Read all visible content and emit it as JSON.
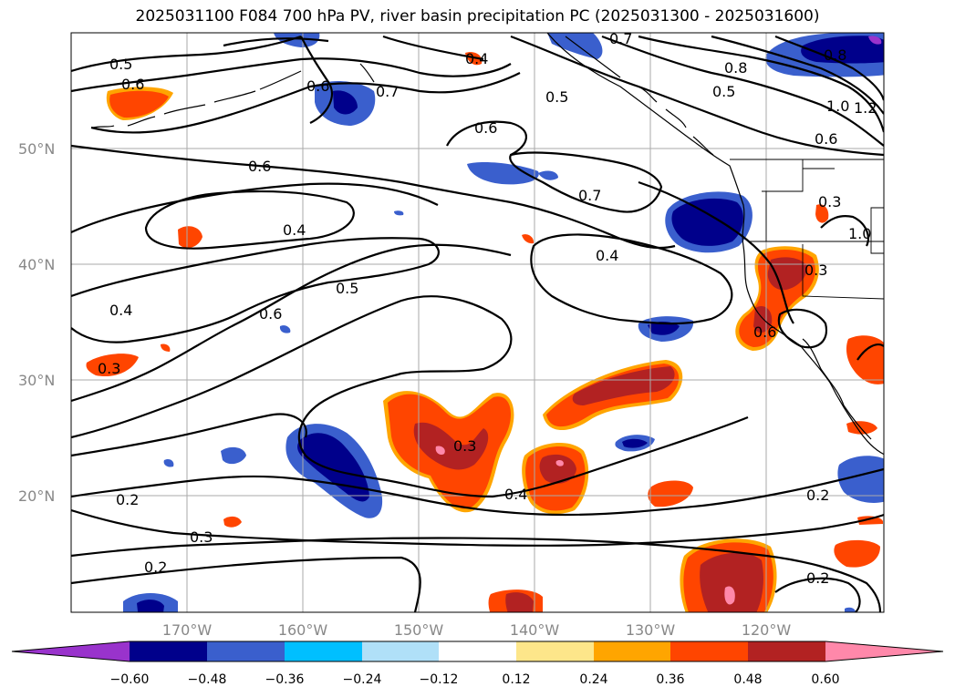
{
  "title": "2025031100 F084 700 hPa PV, river basin precipitation PC (2025031300 - 2025031600)",
  "map": {
    "lat_labels": [
      "50°N",
      "40°N",
      "30°N",
      "20°N"
    ],
    "lon_labels": [
      "170°W",
      "160°W",
      "150°W",
      "140°W",
      "130°W",
      "120°W"
    ],
    "contour_labels": [
      "0.5",
      "0.6",
      "0.6",
      "0.7",
      "0.4",
      "0.5",
      "0.6",
      "0.8",
      "0.5",
      "1.0",
      "1.2",
      "0.6",
      "0.6",
      "0.7",
      "0.4",
      "0.4",
      "0.5",
      "0.6",
      "0.4",
      "0.3",
      "0.3",
      "0.3",
      "0.6",
      "0.3",
      "0.4",
      "0.2",
      "0.3",
      "0.2",
      "0.2",
      "0.2",
      "0.7",
      "1.0",
      "0.8"
    ]
  },
  "colorbar": {
    "ticks": [
      "−0.60",
      "−0.48",
      "−0.36",
      "−0.24",
      "−0.12",
      "0.12",
      "0.24",
      "0.36",
      "0.48",
      "0.60"
    ],
    "colors": [
      "#9933cc",
      "#00008b",
      "#3a5fcd",
      "#00bfff",
      "#b0e0f8",
      "#ffffff",
      "#fde68a",
      "#ffa500",
      "#ff4500",
      "#b22222",
      "#ff88aa"
    ]
  }
}
